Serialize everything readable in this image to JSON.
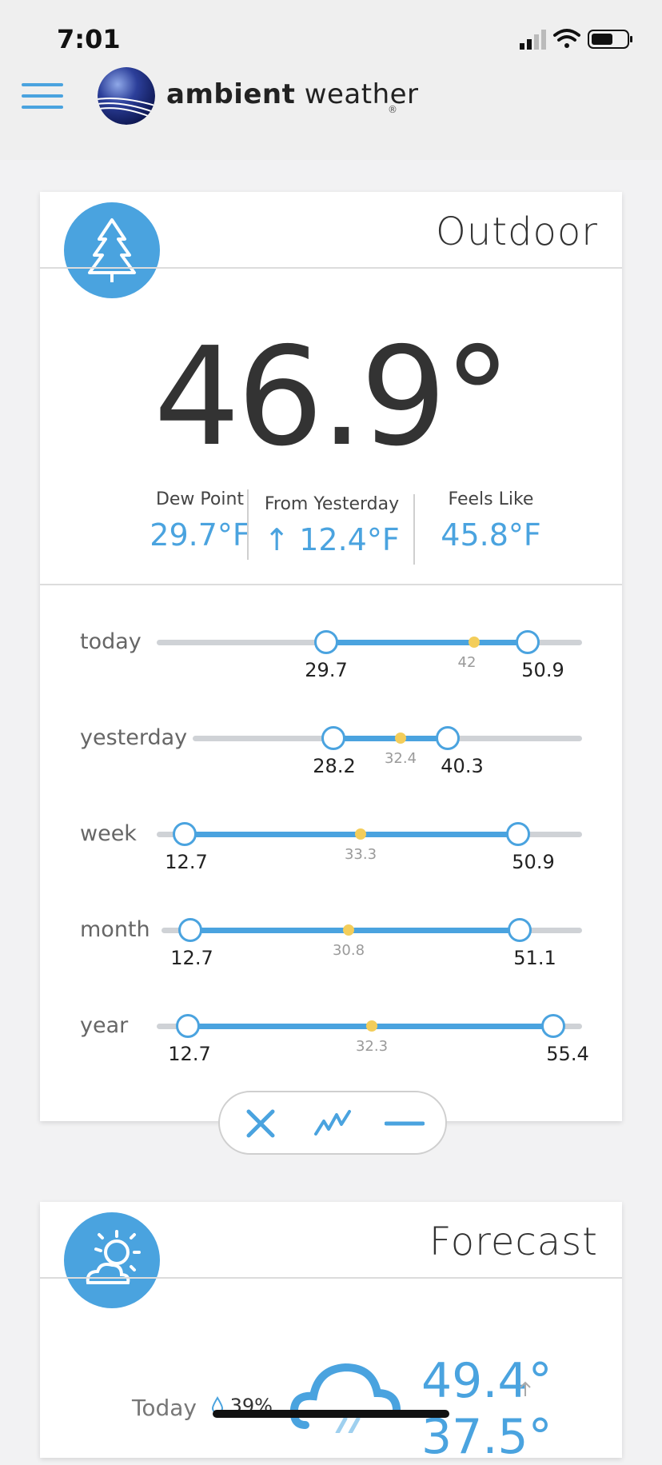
{
  "status_bar": {
    "time": "7:01"
  },
  "header": {
    "brand_bold": "ambient",
    "brand_light": "weather",
    "registered": "®"
  },
  "outdoor": {
    "title": "Outdoor",
    "temperature": "46.9°",
    "stats": [
      {
        "label": "Dew Point",
        "value": "29.7°F"
      },
      {
        "label": "From Yesterday",
        "value": "↑ 12.4°F"
      },
      {
        "label": "Feels Like",
        "value": "45.8°F"
      }
    ],
    "ranges": [
      {
        "label": "today",
        "low": "29.7",
        "avg": "42",
        "high": "50.9"
      },
      {
        "label": "yesterday",
        "low": "28.2",
        "avg": "32.4",
        "high": "40.3"
      },
      {
        "label": "week",
        "low": "12.7",
        "avg": "33.3",
        "high": "50.9"
      },
      {
        "label": "month",
        "low": "12.7",
        "avg": "30.8",
        "high": "51.1"
      },
      {
        "label": "year",
        "low": "12.7",
        "avg": "32.3",
        "high": "55.4"
      }
    ]
  },
  "toolbar": {
    "close_icon": "close-icon",
    "chart_icon": "line-chart-icon",
    "minimize_icon": "minus-icon"
  },
  "forecast": {
    "title": "Forecast",
    "today_label": "Today",
    "precip": "39%",
    "high": "49.4°",
    "low": "37.5°"
  },
  "colors": {
    "accent": "#4aa3df",
    "avg_dot": "#f3cd5a",
    "track": "#cfd2d6"
  }
}
